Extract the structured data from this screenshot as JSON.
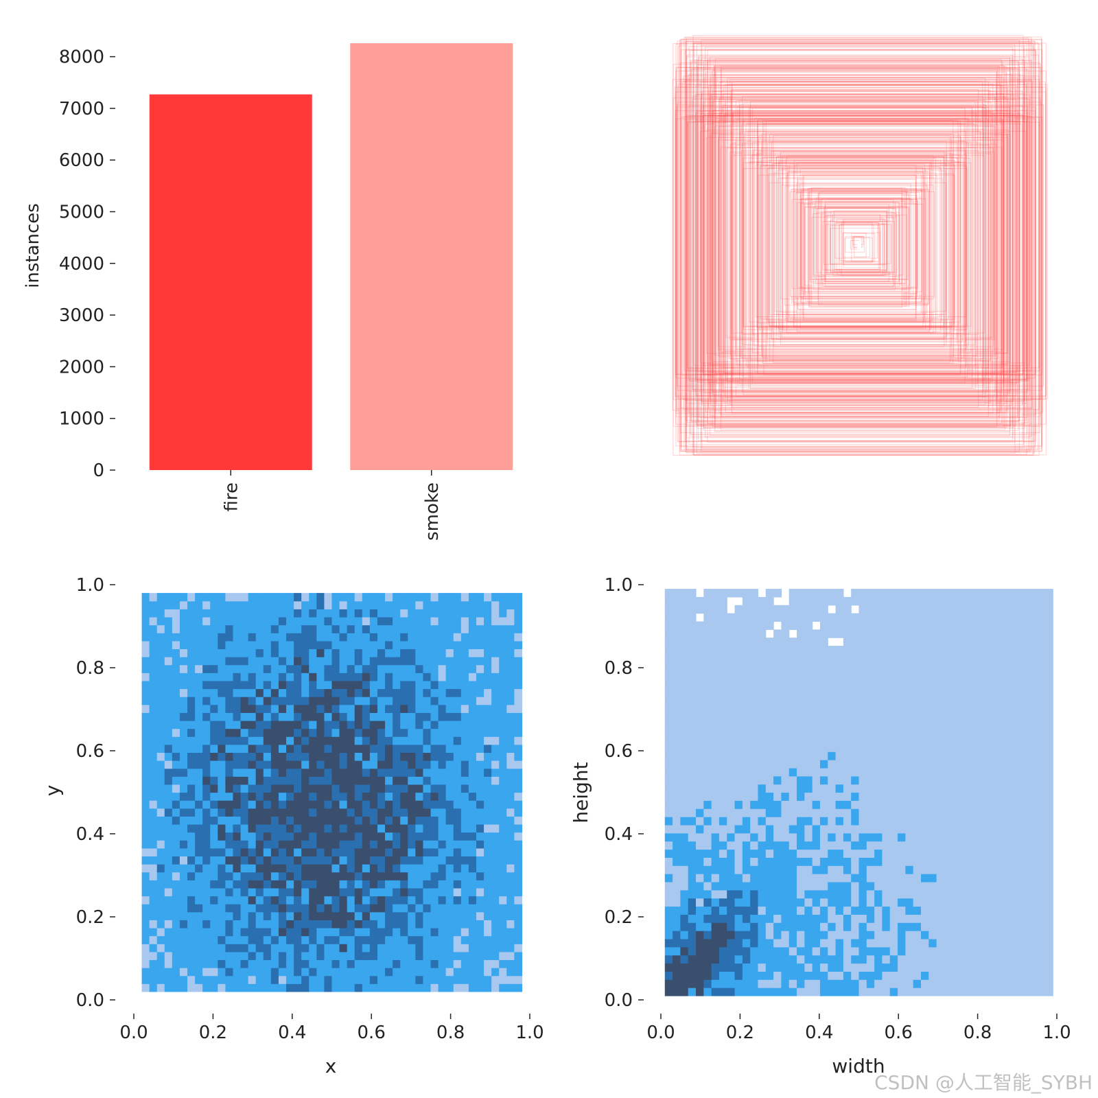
{
  "chart_data": [
    {
      "type": "bar",
      "categories": [
        "fire",
        "smoke"
      ],
      "values": [
        7270,
        8260
      ],
      "colors": [
        "#ff3838",
        "#ff9d97"
      ],
      "ylabel": "instances",
      "xlabel": "",
      "ylim": [
        0,
        8300
      ],
      "yticks": [
        "0",
        "1000",
        "2000",
        "3000",
        "4000",
        "5000",
        "6000",
        "7000",
        "8000"
      ]
    },
    {
      "type": "scatter",
      "subtype": "bounding-box-overlay",
      "description_source": "label box outlines centered at image center",
      "color": "#ff3838",
      "axes_visible": false
    },
    {
      "type": "heatmap",
      "xlabel": "x",
      "ylabel": "y",
      "xlim": [
        0.0,
        1.0
      ],
      "ylim": [
        0.0,
        1.0
      ],
      "xticks": [
        "0.0",
        "0.2",
        "0.4",
        "0.6",
        "0.8",
        "1.0"
      ],
      "yticks": [
        "0.0",
        "0.2",
        "0.4",
        "0.6",
        "0.8",
        "1.0"
      ],
      "bins": 50,
      "data_extent": {
        "x": [
          0.02,
          0.98
        ],
        "y": [
          0.02,
          0.98
        ]
      },
      "peak": {
        "x": 0.48,
        "y": 0.48
      },
      "colors": [
        "#a8c8f0",
        "#39a6ee",
        "#2a6fb0",
        "#3a4e6e"
      ]
    },
    {
      "type": "heatmap",
      "xlabel": "width",
      "ylabel": "height",
      "xlim": [
        0.0,
        1.0
      ],
      "ylim": [
        0.0,
        1.0
      ],
      "xticks": [
        "0.0",
        "0.2",
        "0.4",
        "0.6",
        "0.8",
        "1.0"
      ],
      "yticks": [
        "0.0",
        "0.2",
        "0.4",
        "0.6",
        "0.8",
        "1.0"
      ],
      "bins": 50,
      "data_extent": {
        "x": [
          0.01,
          0.99
        ],
        "y": [
          0.01,
          0.99
        ]
      },
      "peak": {
        "x": 0.05,
        "y": 0.05
      },
      "colors": [
        "#a8c8f0",
        "#39a6ee",
        "#2a6fb0",
        "#3a4e6e"
      ]
    }
  ],
  "watermark": "CSDN @人工智能_SYBH"
}
